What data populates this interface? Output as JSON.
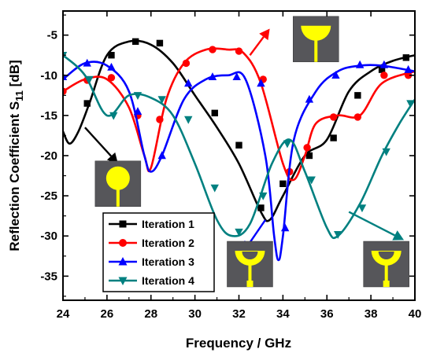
{
  "chart_data": {
    "type": "line",
    "xlabel": "Frequency / GHz",
    "ylabel": "Reflection Coefficient S",
    "ylabel_sub": "11",
    "ylabel_unit": " [dB]",
    "xlim": [
      24,
      40
    ],
    "ylim": [
      -38,
      -2
    ],
    "xticks": [
      24,
      26,
      28,
      30,
      32,
      34,
      36,
      38,
      40
    ],
    "yticks": [
      -35,
      -30,
      -25,
      -20,
      -15,
      -10,
      -5
    ],
    "legend_position": "bottom-left",
    "series": [
      {
        "name": "Iteration 1",
        "color": "#000000",
        "marker": "square",
        "x": [
          24,
          24.3,
          24.7,
          25.2,
          26,
          27,
          28,
          29,
          30,
          31,
          32,
          33,
          33.4,
          34,
          35,
          36,
          37,
          38,
          39,
          40
        ],
        "y": [
          -17,
          -18.5,
          -17,
          -13.5,
          -7.5,
          -5.8,
          -6.2,
          -8.5,
          -12.5,
          -16.5,
          -21,
          -27,
          -28,
          -25,
          -20,
          -18,
          -12,
          -9.5,
          -8.2,
          -7.5
        ],
        "markers_x": [
          25.1,
          26.2,
          27.3,
          28.4,
          30.9,
          32,
          33,
          34,
          35.2,
          36.3,
          37.4,
          38.5,
          39.6
        ],
        "markers_y": [
          -13.5,
          -7.5,
          -5.8,
          -6,
          -14.7,
          -18.7,
          -26.5,
          -23.5,
          -20,
          -17.8,
          -12.5,
          -9.3,
          -7.8
        ]
      },
      {
        "name": "Iteration 2",
        "color": "#ff0000",
        "marker": "circle",
        "x": [
          24,
          25,
          26,
          27,
          27.7,
          28,
          28.7,
          29.5,
          30.5,
          31.5,
          32.2,
          33,
          34,
          34.5,
          35,
          35.5,
          36.5,
          37.5,
          38.5,
          40
        ],
        "y": [
          -12,
          -10.5,
          -10.5,
          -14,
          -20,
          -21.5,
          -13,
          -8.5,
          -6.8,
          -6.8,
          -7.2,
          -11,
          -21,
          -23,
          -20,
          -16,
          -15,
          -15,
          -11,
          -9.5
        ],
        "markers_x": [
          24,
          25.1,
          26.2,
          27.4,
          28.4,
          29.6,
          30.8,
          32,
          33.1,
          34.3,
          35.1,
          36.3,
          37.4,
          38.6,
          39.7
        ],
        "markers_y": [
          -12,
          -10.6,
          -10.3,
          -15,
          -15.5,
          -8.5,
          -6.8,
          -7,
          -10.5,
          -22,
          -19,
          -15.2,
          -15.2,
          -10,
          -10
        ]
      },
      {
        "name": "Iteration 3",
        "color": "#0000ff",
        "marker": "triangle-up",
        "x": [
          24,
          25,
          26,
          27,
          27.7,
          28,
          28.5,
          29.5,
          30.5,
          31.5,
          32.3,
          33.2,
          33.6,
          33.8,
          34,
          34.5,
          35.5,
          36.5,
          37.5,
          38.5,
          40
        ],
        "y": [
          -10.5,
          -8.5,
          -8.8,
          -12,
          -20,
          -22,
          -20,
          -13,
          -10.5,
          -10,
          -10.5,
          -20,
          -30,
          -33,
          -30,
          -18,
          -12,
          -9.5,
          -8.8,
          -8.8,
          -9.5
        ],
        "markers_x": [
          24,
          25.1,
          26.2,
          27.4,
          28.5,
          29.7,
          30.8,
          31.9,
          33,
          34.1,
          35.2,
          36.4,
          37.5,
          38.6,
          39.7
        ],
        "markers_y": [
          -10.2,
          -8.5,
          -9,
          -14.5,
          -20,
          -11,
          -10.2,
          -10.2,
          -11,
          -29,
          -13,
          -10,
          -8.7,
          -8.7,
          -9.3
        ]
      },
      {
        "name": "Iteration 4",
        "color": "#008080",
        "marker": "triangle-down",
        "x": [
          24,
          25,
          26,
          27,
          28,
          29,
          30,
          31,
          31.7,
          32.5,
          33.5,
          34.3,
          35,
          36,
          36.5,
          37.5,
          38.5,
          39.3,
          40
        ],
        "y": [
          -7.5,
          -10,
          -15,
          -12.5,
          -12.8,
          -15,
          -21,
          -28,
          -30,
          -28.5,
          -21,
          -18,
          -22,
          -29,
          -30,
          -26,
          -20,
          -16,
          -13
        ],
        "markers_x": [
          24,
          25.2,
          26.3,
          27.4,
          28.5,
          29.7,
          30.9,
          32,
          33.1,
          34.2,
          35.3,
          36.5,
          37.6,
          38.7,
          39.8
        ],
        "markers_y": [
          -7.5,
          -10.5,
          -15,
          -12.5,
          -13,
          -15.5,
          -24,
          -29.5,
          -25,
          -18.5,
          -23,
          -29.8,
          -26.5,
          -19.5,
          -13.5
        ]
      }
    ],
    "arrows": [
      {
        "color": "#000000",
        "from": [
          25,
          -16.5
        ],
        "to": [
          26.5,
          -21
        ]
      },
      {
        "color": "#ff0000",
        "from": [
          32.5,
          -7.5
        ],
        "to": [
          33.4,
          -4.2
        ]
      },
      {
        "color": "#0000ff",
        "from": [
          33.2,
          -28
        ],
        "to": [
          32.2,
          -32
        ]
      },
      {
        "color": "#008080",
        "from": [
          37,
          -27
        ],
        "to": [
          39.5,
          -30.5
        ]
      }
    ],
    "insets": [
      {
        "name": "patch-circle",
        "x": 26.5,
        "y": -23.5
      },
      {
        "name": "patch-crescent-top",
        "x": 35.5,
        "y": -5.5
      },
      {
        "name": "patch-crescent-mid",
        "x": 32.5,
        "y": -33.5
      },
      {
        "name": "patch-crescent-right",
        "x": 38.7,
        "y": -33.5
      }
    ]
  }
}
